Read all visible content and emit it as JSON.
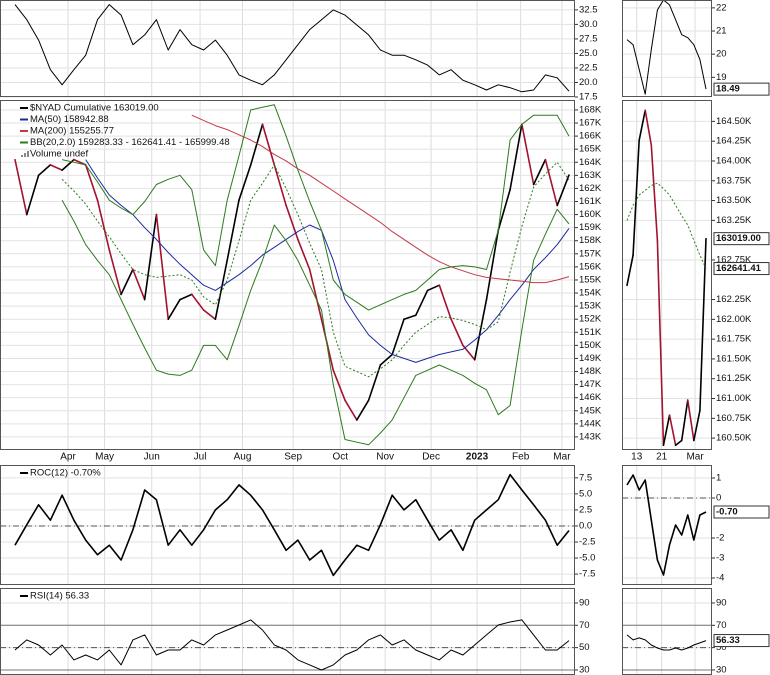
{
  "chart_data": [
    {
      "type": "line",
      "xlim": [
        0,
        47
      ],
      "ylim": [
        17.5,
        34.2
      ],
      "yticks": [
        32.5,
        {
          "value": 30,
          "label": "30.0"
        },
        27.5,
        {
          "value": 25,
          "label": "25.0"
        },
        22.5,
        {
          "value": 20,
          "label": "20.0"
        },
        17.5
      ],
      "series": [
        {
          "color": "#000000",
          "values": [
            33.4,
            30.8,
            27.3,
            22.2,
            19.6,
            22.2,
            24.7,
            30.8,
            33.4,
            31.6,
            26.5,
            28.2,
            30.8,
            25.6,
            29.1,
            26.5,
            25.6,
            27.3,
            24.7,
            21.3,
            20.4,
            19.6,
            21.3,
            23.9,
            26.5,
            29.1,
            30.8,
            32.5,
            31.6,
            29.9,
            28.2,
            25.6,
            24.7,
            24.7,
            23.9,
            23,
            21.3,
            22.2,
            20.4,
            19.6,
            18.7,
            19.6,
            19.1,
            18.4,
            18.7,
            21.3,
            20.8,
            18.49
          ]
        }
      ]
    },
    {
      "type": "line",
      "xlim": [
        0,
        47
      ],
      "ylim": [
        142000,
        168760
      ],
      "grid": true,
      "xticks": [
        {
          "value": 4.5,
          "label": "Apr"
        },
        {
          "value": 7.6,
          "label": "May"
        },
        {
          "value": 11.6,
          "label": "Jun"
        },
        {
          "value": 15.7,
          "label": "Jul"
        },
        {
          "value": 19.3,
          "label": "Aug"
        },
        {
          "value": 23.6,
          "label": "Sep"
        },
        {
          "value": 27.6,
          "label": "Oct"
        },
        {
          "value": 31.4,
          "label": "Nov"
        },
        {
          "value": 35.3,
          "label": "Dec"
        },
        {
          "value": 39.2,
          "label": "2023"
        },
        {
          "value": 42.9,
          "label": "Feb"
        },
        {
          "value": 46.4,
          "label": "Mar"
        }
      ],
      "yticks": [
        {
          "value": 168000,
          "label": "168K"
        },
        {
          "value": 167000,
          "label": "167K"
        },
        {
          "value": 166000,
          "label": "166K"
        },
        {
          "value": 165000,
          "label": "165K"
        },
        {
          "value": 164000,
          "label": "164K"
        },
        {
          "value": 163000,
          "label": "163K"
        },
        {
          "value": 162000,
          "label": "162K"
        },
        {
          "value": 161000,
          "label": "161K"
        },
        {
          "value": 160000,
          "label": "160K"
        },
        {
          "value": 159000,
          "label": "159K"
        },
        {
          "value": 158000,
          "label": "158K"
        },
        {
          "value": 157000,
          "label": "157K"
        },
        {
          "value": 156000,
          "label": "156K"
        },
        {
          "value": 155000,
          "label": "155K"
        },
        {
          "value": 154000,
          "label": "154K"
        },
        {
          "value": 153000,
          "label": "153K"
        },
        {
          "value": 152000,
          "label": "152K"
        },
        {
          "value": 151000,
          "label": "151K"
        },
        {
          "value": 150000,
          "label": "150K"
        },
        {
          "value": 149000,
          "label": "149K"
        },
        {
          "value": 148000,
          "label": "148K"
        },
        {
          "value": 147000,
          "label": "147K"
        },
        {
          "value": 146000,
          "label": "146K"
        },
        {
          "value": 145000,
          "label": "145K"
        },
        {
          "value": 144000,
          "label": "144K"
        },
        {
          "value": 143000,
          "label": "143K"
        }
      ],
      "series": [
        {
          "name": "$NYAD Cumulative 163019.00",
          "color": "#000000",
          "down_color": "#a3122e",
          "width": 1.6,
          "values": [
            164200,
            160000,
            163000,
            163800,
            163400,
            164200,
            163800,
            161100,
            157300,
            153900,
            155800,
            153500,
            160000,
            152000,
            153500,
            153900,
            152700,
            152000,
            156500,
            161100,
            163800,
            166900,
            163800,
            160700,
            158100,
            155800,
            152000,
            148100,
            145800,
            144300,
            145800,
            148500,
            149300,
            152000,
            152300,
            154200,
            154600,
            152000,
            150000,
            148900,
            153500,
            158800,
            161900,
            166900,
            162300,
            164200,
            160700,
            163019
          ]
        },
        {
          "name": "MA(50) 158942.88",
          "color": "#1c2a9c",
          "values": [
            null,
            null,
            null,
            null,
            null,
            null,
            164200,
            162800,
            161500,
            160700,
            160000,
            159000,
            158100,
            157100,
            156200,
            155400,
            154600,
            154200,
            154800,
            155400,
            156100,
            156900,
            157500,
            158100,
            158700,
            159200,
            158800,
            156500,
            153500,
            152100,
            150800,
            150000,
            149300,
            149000,
            148700,
            149000,
            149300,
            149500,
            149700,
            150400,
            151200,
            152300,
            153500,
            154600,
            155800,
            156700,
            157700,
            158942.88
          ]
        },
        {
          "name": "MA(200) 155255.77",
          "color": "#c23a48",
          "values": [
            null,
            null,
            null,
            null,
            null,
            null,
            null,
            null,
            null,
            null,
            null,
            null,
            null,
            null,
            null,
            167600,
            167200,
            166800,
            166500,
            166100,
            165700,
            165200,
            164600,
            164100,
            163500,
            163000,
            162400,
            161800,
            161200,
            160600,
            160000,
            159400,
            158700,
            158100,
            157500,
            156900,
            156400,
            156000,
            155700,
            155400,
            155200,
            155100,
            155000,
            154900,
            154800,
            154800,
            155000,
            155255.77
          ]
        },
        {
          "name": "BB(20,2.0) 159283.33 - 162641.41 - 165999.48",
          "color": "#2d7a1e",
          "values": [
            null,
            null,
            null,
            null,
            164200,
            164000,
            163800,
            162500,
            161100,
            160500,
            160000,
            161000,
            162300,
            162700,
            163000,
            161900,
            157300,
            156100,
            161100,
            164500,
            168000,
            168200,
            168400,
            166000,
            163400,
            161000,
            158800,
            155000,
            153900,
            153300,
            152700,
            153100,
            153500,
            153900,
            154200,
            155000,
            155800,
            156000,
            156100,
            156000,
            155800,
            158800,
            165700,
            166900,
            167600,
            167600,
            167600,
            165999.48
          ]
        },
        {
          "color": "#2d7a1e",
          "dash": "2,2",
          "values": [
            null,
            null,
            null,
            null,
            162700,
            161800,
            160800,
            159500,
            158300,
            157000,
            155800,
            155400,
            155200,
            155300,
            155400,
            155000,
            153700,
            153100,
            155000,
            158000,
            161100,
            162400,
            163800,
            162000,
            160000,
            157800,
            155800,
            151000,
            148400,
            148000,
            147600,
            148200,
            148900,
            150000,
            151000,
            151600,
            152200,
            152100,
            151900,
            151600,
            151200,
            151800,
            155600,
            159100,
            162100,
            163100,
            164000,
            162641.41
          ]
        },
        {
          "color": "#2d7a1e",
          "values": [
            null,
            null,
            null,
            null,
            161100,
            159500,
            157700,
            156500,
            155400,
            153500,
            151600,
            149800,
            148100,
            147800,
            147700,
            148100,
            150000,
            150000,
            148900,
            151500,
            154200,
            156500,
            159200,
            158000,
            156500,
            154600,
            152700,
            147000,
            142800,
            142600,
            142400,
            143300,
            144300,
            146000,
            147700,
            148100,
            148500,
            148100,
            147700,
            147100,
            146600,
            144700,
            145400,
            151200,
            156500,
            158500,
            160400,
            159283.33
          ]
        }
      ],
      "extra_legend": [
        "Volume undef"
      ]
    },
    {
      "type": "line",
      "xlim": [
        0,
        47
      ],
      "ylim": [
        -9.2,
        9.5
      ],
      "yticks": [
        7.5,
        {
          "value": 5,
          "label": "5.0"
        },
        2.5,
        {
          "value": 0,
          "label": "0.0"
        },
        -2.5,
        {
          "value": -5,
          "label": "-5.0"
        },
        -7.5
      ],
      "ref_lines": [
        0
      ],
      "series": [
        {
          "name": "ROC(12) -0.70%",
          "color": "#000000",
          "width": 1.6,
          "values": [
            -3,
            0.2,
            3.3,
            0.9,
            4.8,
            0.9,
            -2.2,
            -4.5,
            -3,
            -5.3,
            -0.6,
            5.6,
            4.1,
            -3,
            -0.6,
            -3,
            -0.6,
            2.5,
            4.1,
            6.4,
            4.8,
            2.5,
            -0.6,
            -3.8,
            -2.2,
            -5.3,
            -3.8,
            -7.7,
            -5.3,
            -3,
            -3.8,
            0.2,
            4.8,
            2.5,
            4.1,
            0.9,
            -2.2,
            -0.6,
            -3.8,
            0.9,
            2.5,
            4.1,
            8,
            5.6,
            3.3,
            0.9,
            -3,
            -0.7
          ]
        }
      ]
    },
    {
      "type": "line",
      "xlim": [
        0,
        47
      ],
      "ylim": [
        25.5,
        103.4
      ],
      "yticks": [
        90,
        70,
        50,
        30
      ],
      "ref_lines": [
        70,
        50,
        30
      ],
      "series": [
        {
          "name": "RSI(14) 56.33",
          "color": "#000000",
          "values": [
            47.9,
            56.9,
            52.4,
            43.4,
            52.4,
            39,
            43.4,
            39,
            47.9,
            34.5,
            56.9,
            61.4,
            43.4,
            47.9,
            47.9,
            56.9,
            52.4,
            61.4,
            65.8,
            70.3,
            74.8,
            65.8,
            52.4,
            47.9,
            39,
            34.5,
            30,
            34.5,
            43.4,
            47.9,
            56.9,
            61.4,
            52.4,
            56.9,
            47.9,
            43.4,
            39,
            47.9,
            43.4,
            52.4,
            61.4,
            70.3,
            73,
            74.8,
            61.4,
            47.9,
            47.9,
            56.33
          ]
        }
      ]
    },
    {
      "type": "line",
      "xlim": [
        0,
        13
      ],
      "ylim": [
        18.15,
        22.34
      ],
      "yticks": [
        22,
        21,
        20,
        19
      ],
      "series": [
        {
          "color": "#000000",
          "last_label": "18.49",
          "values": [
            20.63,
            20.41,
            19.34,
            18.27,
            20.2,
            21.91,
            22.34,
            22.13,
            21.49,
            20.84,
            20.71,
            20.41,
            19.77,
            18.49
          ]
        }
      ]
    },
    {
      "type": "line",
      "xlim": [
        0,
        13
      ],
      "ylim": [
        160350,
        164770
      ],
      "xticks": [
        {
          "value": 1.6,
          "label": "13"
        },
        {
          "value": 5.7,
          "label": "21"
        },
        {
          "value": 11.2,
          "label": "Mar"
        }
      ],
      "yticks": [
        {
          "value": 164500,
          "label": "164.50K"
        },
        {
          "value": 164250,
          "label": "164.25K"
        },
        {
          "value": 164000,
          "label": "164.00K"
        },
        {
          "value": 163750,
          "label": "163.75K"
        },
        {
          "value": 163500,
          "label": "163.50K"
        },
        {
          "value": 163250,
          "label": "163.25K"
        },
        {
          "value": 162750,
          "label": "162.75K"
        },
        {
          "value": 162250,
          "label": "162.25K"
        },
        {
          "value": 162000,
          "label": "162.00K"
        },
        {
          "value": 161750,
          "label": "161.75K"
        },
        {
          "value": 161500,
          "label": "161.50K"
        },
        {
          "value": 161250,
          "label": "161.25K"
        },
        {
          "value": 161000,
          "label": "161.00K"
        },
        {
          "value": 160750,
          "label": "160.75K"
        },
        {
          "value": 160500,
          "label": "160.50K"
        }
      ],
      "series": [
        {
          "color": "#000000",
          "down_color": "#a3122e",
          "width": 1.6,
          "last_label": "163019.00",
          "values": [
            162430,
            162810,
            164260,
            164640,
            164200,
            163000,
            160410,
            160790,
            160410,
            160470,
            160980,
            160470,
            160850,
            163019
          ]
        },
        {
          "color": "#2d7a1e",
          "dash": "2,2",
          "last_label": "162641.41",
          "values": [
            163250,
            163440,
            163570,
            163630,
            163690,
            163720,
            163650,
            163570,
            163440,
            163310,
            163190,
            163000,
            162810,
            162641.41
          ]
        }
      ]
    },
    {
      "type": "line",
      "xlim": [
        0,
        13
      ],
      "ylim": [
        -4.35,
        1.65
      ],
      "yticks": [
        1,
        0,
        -2,
        -3,
        -4
      ],
      "ref_lines": [
        0
      ],
      "series": [
        {
          "color": "#000000",
          "width": 1.6,
          "last_label": "-0.70",
          "values": [
            0.65,
            1.15,
            0.4,
            0.9,
            -1.1,
            -3.1,
            -3.85,
            -2.35,
            -1.35,
            -1.85,
            -0.85,
            -2.1,
            -0.85,
            -0.7
          ]
        }
      ]
    },
    {
      "type": "line",
      "xlim": [
        0,
        13
      ],
      "ylim": [
        25.5,
        103.4
      ],
      "yticks": [
        90,
        70,
        50,
        30
      ],
      "ref_lines": [
        70,
        50,
        30
      ],
      "series": [
        {
          "color": "#000000",
          "last_label": "56.33",
          "values": [
            61.4,
            56.9,
            58.7,
            56.9,
            52.4,
            49.7,
            47.9,
            47.9,
            49.7,
            47.9,
            49.7,
            52.4,
            54.2,
            56.33
          ]
        }
      ]
    }
  ]
}
